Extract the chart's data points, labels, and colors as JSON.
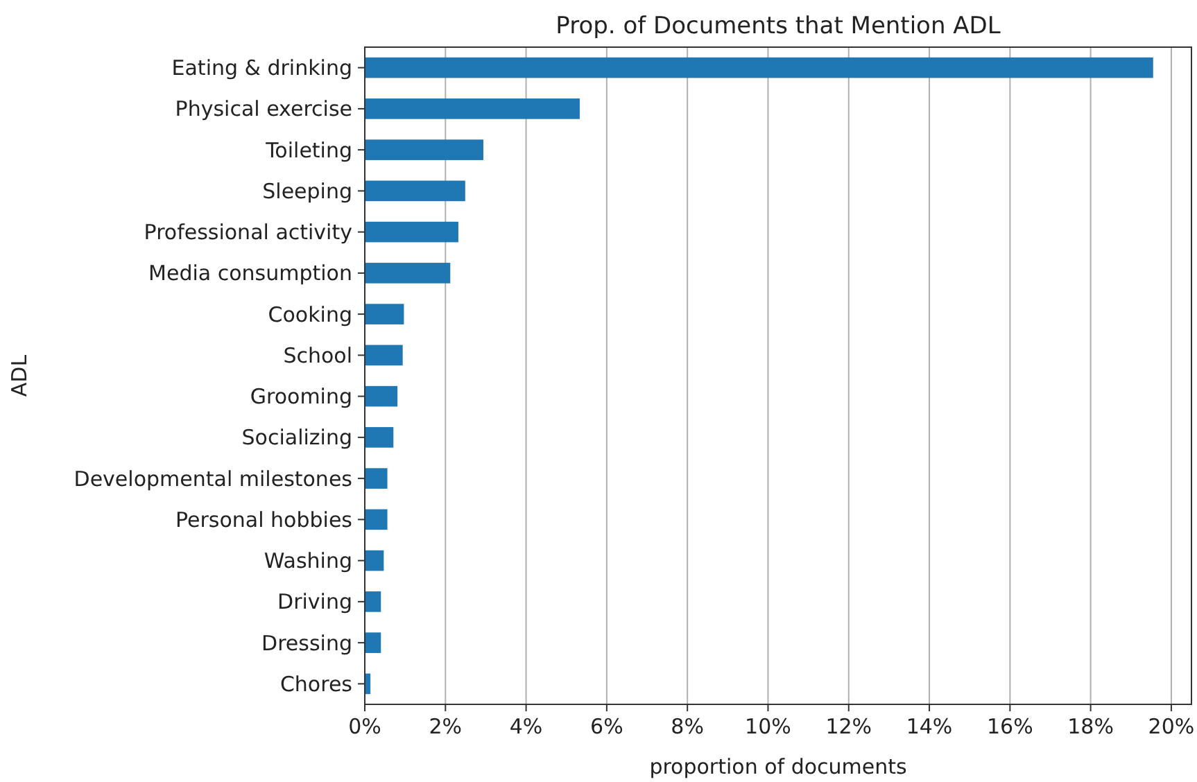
{
  "chart_data": {
    "type": "bar",
    "orientation": "horizontal",
    "title": "Prop. of Documents that Mention ADL",
    "xlabel": "proportion of documents",
    "ylabel": "ADL",
    "categories": [
      "Eating & drinking",
      "Physical exercise",
      "Toileting",
      "Sleeping",
      "Professional activity",
      "Media consumption",
      "Cooking",
      "School",
      "Grooming",
      "Socializing",
      "Developmental milestones",
      "Personal hobbies",
      "Washing",
      "Driving",
      "Dressing",
      "Chores"
    ],
    "values": [
      19.55,
      5.33,
      2.94,
      2.49,
      2.32,
      2.12,
      0.97,
      0.94,
      0.81,
      0.71,
      0.56,
      0.56,
      0.47,
      0.4,
      0.4,
      0.14
    ],
    "color": "#1f77b4",
    "xlim": [
      0,
      20.5
    ],
    "xticks": [
      {
        "value": 0,
        "label": "0%"
      },
      {
        "value": 2,
        "label": "2%"
      },
      {
        "value": 4,
        "label": "4%"
      },
      {
        "value": 6,
        "label": "6%"
      },
      {
        "value": 8,
        "label": "8%"
      },
      {
        "value": 10,
        "label": "10%"
      },
      {
        "value": 12,
        "label": "12%"
      },
      {
        "value": 14,
        "label": "14%"
      },
      {
        "value": 16,
        "label": "16%"
      },
      {
        "value": 18,
        "label": "18%"
      },
      {
        "value": 20,
        "label": "20%"
      }
    ],
    "grid": "x"
  }
}
